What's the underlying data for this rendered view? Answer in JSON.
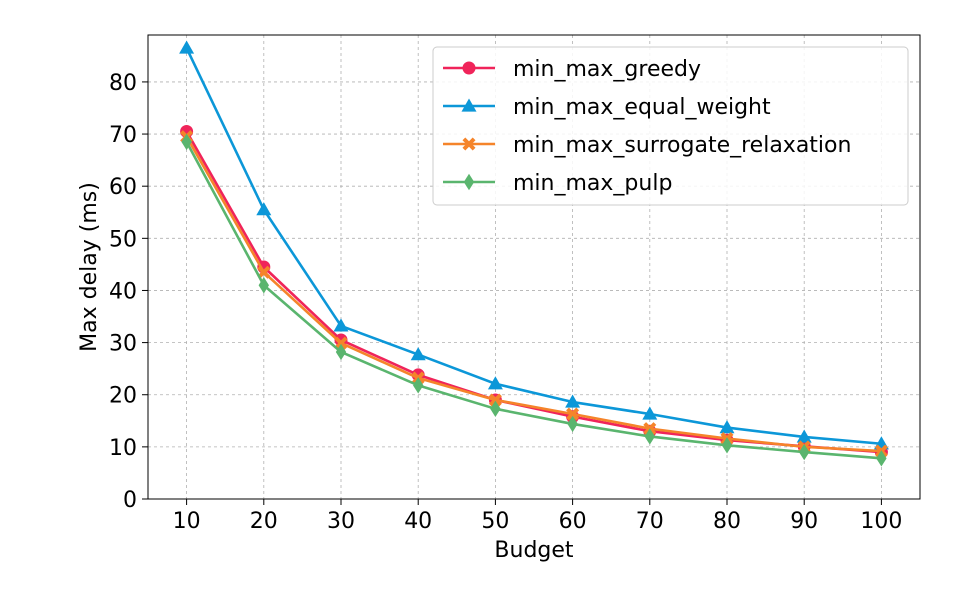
{
  "chart_data": {
    "type": "line",
    "xlabel": "Budget",
    "ylabel": "Max delay (ms)",
    "x": [
      10,
      20,
      30,
      40,
      50,
      60,
      70,
      80,
      90,
      100
    ],
    "xlim": [
      5,
      105
    ],
    "ylim": [
      0,
      89
    ],
    "yticks": [
      0,
      10,
      20,
      30,
      40,
      50,
      60,
      70,
      80
    ],
    "grid": true,
    "legend_position": "top-right",
    "series": [
      {
        "name": "min_max_greedy",
        "color": "#f0245a",
        "marker": "circle",
        "values": [
          70.5,
          44.5,
          30.5,
          23.8,
          19.0,
          15.8,
          13.0,
          11.3,
          10.1,
          9.0
        ]
      },
      {
        "name": "min_max_equal_weight",
        "color": "#0c97d8",
        "marker": "triangle-up",
        "values": [
          86.5,
          55.5,
          33.2,
          27.7,
          22.1,
          18.6,
          16.3,
          13.7,
          11.9,
          10.6
        ]
      },
      {
        "name": "min_max_surrogate_relaxation",
        "color": "#f5842a",
        "marker": "x-filled",
        "values": [
          69.5,
          43.5,
          29.9,
          23.2,
          19.0,
          16.3,
          13.5,
          11.6,
          10.0,
          9.2
        ]
      },
      {
        "name": "min_max_pulp",
        "color": "#5ab56e",
        "marker": "thin-diamond",
        "values": [
          68.5,
          41.0,
          28.2,
          21.8,
          17.3,
          14.4,
          12.0,
          10.3,
          9.0,
          7.8
        ]
      }
    ]
  }
}
